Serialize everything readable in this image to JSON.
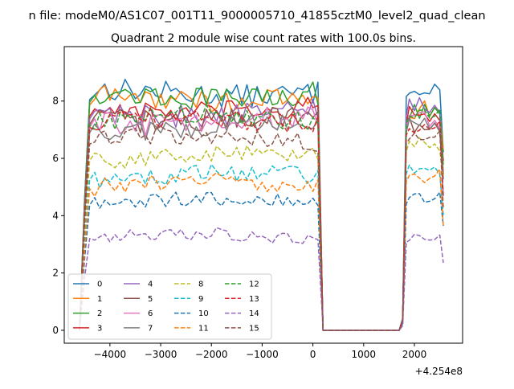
{
  "figure": {
    "suptitle": "n file: modeM0/AS1C07_001T11_9000005710_41855cztM0_level2_quad_clean",
    "offset_label": "+4.254e8"
  },
  "chart_data": {
    "type": "line",
    "title": "Quadrant 2 module wise count rates with 100.0s bins.",
    "xlabel": "",
    "ylabel": "",
    "xlim": [
      -4900,
      2950
    ],
    "ylim": [
      -0.45,
      9.9
    ],
    "x_offset": 425400000,
    "xticks": [
      -4000,
      -3000,
      -2000,
      -1000,
      0,
      1000,
      2000
    ],
    "xtick_labels": [
      "−4000",
      "−3000",
      "−2000",
      "−1000",
      "0",
      "1000",
      "2000"
    ],
    "yticks": [
      0,
      2,
      4,
      6,
      8
    ],
    "ytick_labels": [
      "0",
      "2",
      "4",
      "6",
      "8"
    ],
    "grid": false,
    "legend_position": "lower-left",
    "legend_columns": 4,
    "gap_x_range": [
      200,
      1700
    ],
    "segments": [
      {
        "x_start": -4550,
        "x_end": 100
      },
      {
        "x_start": 1800,
        "x_end": 2570
      }
    ],
    "series": [
      {
        "name": "0",
        "color": "#1f77b4",
        "dash": "solid",
        "mean1": 8.3,
        "mean2": 8.5,
        "amp": 0.25
      },
      {
        "name": "1",
        "color": "#ff7f0e",
        "dash": "solid",
        "mean1": 8.1,
        "mean2": 7.7,
        "amp": 0.25
      },
      {
        "name": "2",
        "color": "#2ca02c",
        "dash": "solid",
        "mean1": 8.2,
        "mean2": 7.7,
        "amp": 0.25
      },
      {
        "name": "3",
        "color": "#d62728",
        "dash": "solid",
        "mean1": 7.7,
        "mean2": 7.5,
        "amp": 0.25
      },
      {
        "name": "4",
        "color": "#9467bd",
        "dash": "solid",
        "mean1": 7.6,
        "mean2": 7.8,
        "amp": 0.25
      },
      {
        "name": "5",
        "color": "#8c564b",
        "dash": "solid",
        "mean1": 7.4,
        "mean2": 7.2,
        "amp": 0.25
      },
      {
        "name": "6",
        "color": "#e377c2",
        "dash": "solid",
        "mean1": 7.3,
        "mean2": 7.3,
        "amp": 0.25
      },
      {
        "name": "7",
        "color": "#7f7f7f",
        "dash": "solid",
        "mean1": 7.1,
        "mean2": 7.2,
        "amp": 0.25
      },
      {
        "name": "8",
        "color": "#bcbd22",
        "dash": "dashed",
        "mean1": 6.1,
        "mean2": 6.5,
        "amp": 0.2
      },
      {
        "name": "9",
        "color": "#17becf",
        "dash": "dashed",
        "mean1": 5.4,
        "mean2": 5.7,
        "amp": 0.2
      },
      {
        "name": "10",
        "color": "#1f77b4",
        "dash": "dashed",
        "mean1": 4.5,
        "mean2": 4.6,
        "amp": 0.18
      },
      {
        "name": "11",
        "color": "#ff7f0e",
        "dash": "dashed",
        "mean1": 5.1,
        "mean2": 5.4,
        "amp": 0.2
      },
      {
        "name": "12",
        "color": "#2ca02c",
        "dash": "dashed",
        "mean1": 7.4,
        "mean2": 7.5,
        "amp": 0.22
      },
      {
        "name": "13",
        "color": "#d62728",
        "dash": "dashed",
        "mean1": 7.3,
        "mean2": 7.1,
        "amp": 0.22
      },
      {
        "name": "14",
        "color": "#9467bd",
        "dash": "dashed",
        "mean1": 3.3,
        "mean2": 3.2,
        "amp": 0.15
      },
      {
        "name": "15",
        "color": "#8c564b",
        "dash": "dashed",
        "mean1": 6.7,
        "mean2": 6.8,
        "amp": 0.22
      }
    ]
  }
}
